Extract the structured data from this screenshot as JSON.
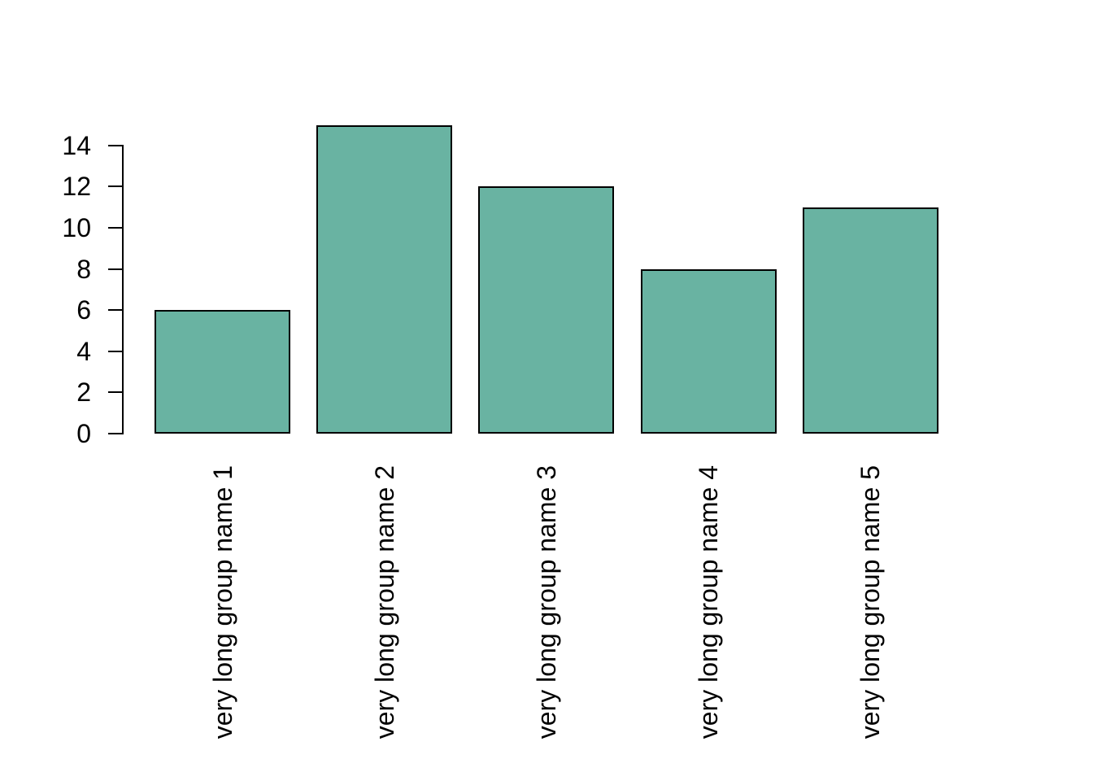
{
  "chart_data": {
    "type": "bar",
    "categories": [
      "very long group name 1",
      "very long group name 2",
      "very long group name 3",
      "very long group name 4",
      "very long group name 5"
    ],
    "values": [
      6,
      15,
      12,
      8,
      11
    ],
    "yticks": [
      0,
      2,
      4,
      6,
      8,
      10,
      12,
      14
    ],
    "ylim": [
      0,
      15
    ],
    "title": "",
    "xlabel": "",
    "ylabel": "",
    "grid": false,
    "legend": null,
    "bar_fill_color": "#69b3a2",
    "bar_border_color": "#000000",
    "axis_color": "#000000",
    "text_color": "#000000",
    "background_color": "#ffffff"
  }
}
